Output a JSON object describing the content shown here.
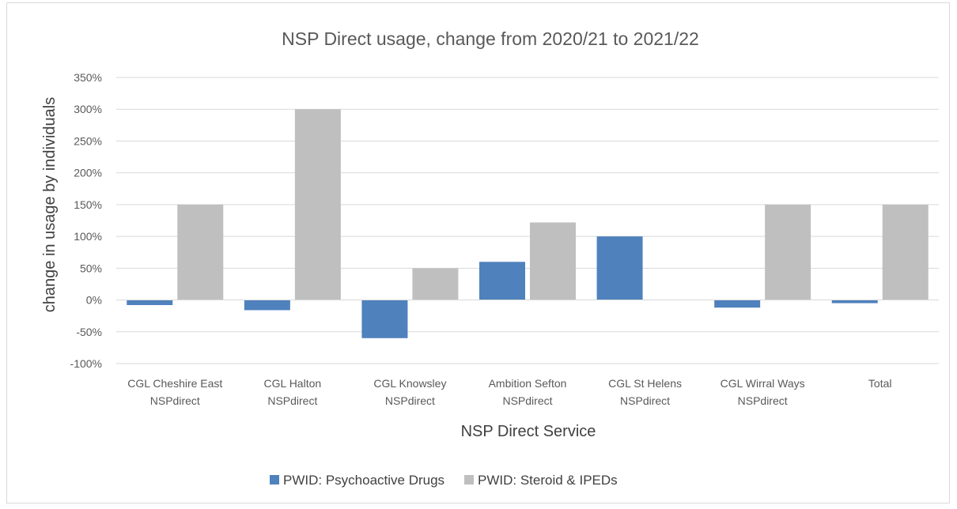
{
  "chart_data": {
    "type": "bar",
    "title": "NSP Direct usage, change from 2020/21 to 2021/22",
    "xlabel": "NSP Direct Service",
    "ylabel": "change in usage by individuals",
    "categories": [
      [
        "CGL Cheshire East",
        "NSPdirect"
      ],
      [
        "CGL Halton",
        "NSPdirect"
      ],
      [
        "CGL Knowsley",
        "NSPdirect"
      ],
      [
        "Ambition Sefton",
        "NSPdirect"
      ],
      [
        "CGL St Helens",
        "NSPdirect"
      ],
      [
        "CGL Wirral Ways",
        "NSPdirect"
      ],
      [
        "Total"
      ]
    ],
    "series": [
      {
        "name": "PWID: Psychoactive Drugs",
        "color": "#4f81bd",
        "values": [
          -8,
          -16,
          -60,
          60,
          100,
          -12,
          -5
        ]
      },
      {
        "name": "PWID: Steroid & IPEDs",
        "color": "#bfbfbf",
        "values": [
          150,
          300,
          50,
          122,
          0,
          150,
          150
        ]
      }
    ],
    "ylim": [
      -100,
      350
    ],
    "yticks": [
      -100,
      -50,
      0,
      50,
      100,
      150,
      200,
      250,
      300,
      350
    ],
    "ytick_labels": [
      "-100%",
      "-50%",
      "0%",
      "50%",
      "100%",
      "150%",
      "200%",
      "250%",
      "300%",
      "350%"
    ],
    "grid": true,
    "legend": "bottom"
  }
}
